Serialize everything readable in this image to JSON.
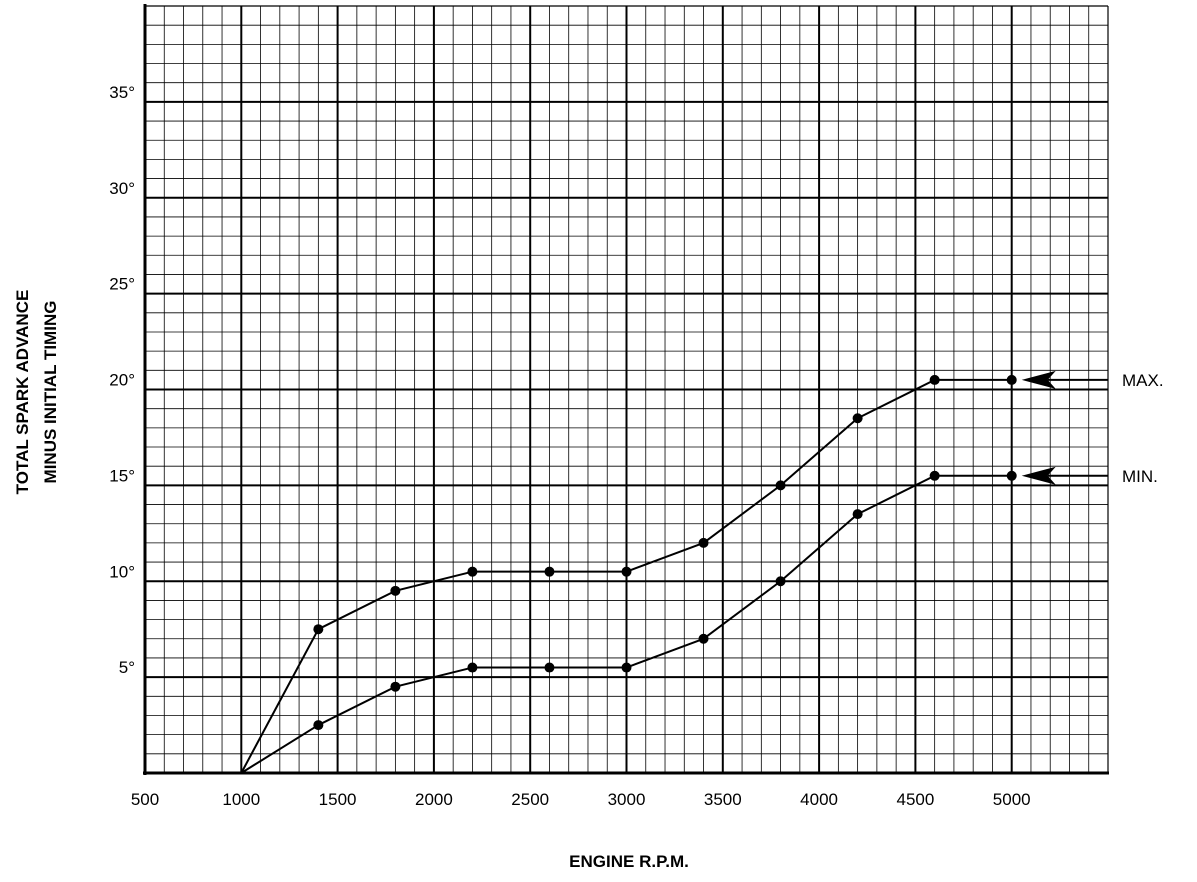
{
  "chart_data": {
    "type": "line",
    "title": "",
    "xlabel": "ENGINE R.P.M.",
    "ylabel_lines": [
      "TOTAL SPARK ADVANCE",
      "MINUS INITIAL TIMING"
    ],
    "xlim": [
      500,
      5500
    ],
    "ylim": [
      0,
      40
    ],
    "x_ticks": [
      500,
      1000,
      1500,
      2000,
      2500,
      3000,
      3500,
      4000,
      4500,
      5000
    ],
    "x_tick_labels": [
      "500",
      "1000",
      "1500",
      "2000",
      "2500",
      "3000",
      "3500",
      "4000",
      "4500",
      "5000"
    ],
    "y_ticks": [
      5,
      10,
      15,
      20,
      25,
      30,
      35
    ],
    "y_tick_labels": [
      "5°",
      "10°",
      "15°",
      "20°",
      "25°",
      "30°",
      "35°"
    ],
    "grid": true,
    "grid_minor_x": 100,
    "grid_minor_y": 1,
    "legend": "none",
    "series": [
      {
        "name": "MAX.",
        "x": [
          1000,
          1400,
          1800,
          2200,
          2600,
          3000,
          3400,
          3800,
          4200,
          4600,
          5000
        ],
        "y": [
          0,
          7.5,
          9.5,
          10.5,
          10.5,
          10.5,
          12,
          15,
          18.5,
          20.5,
          20.5
        ],
        "markers_from_index": 1
      },
      {
        "name": "MIN.",
        "x": [
          1000,
          1400,
          1800,
          2200,
          2600,
          3000,
          3400,
          3800,
          4200,
          4600,
          5000
        ],
        "y": [
          0,
          2.5,
          4.5,
          5.5,
          5.5,
          5.5,
          7,
          10,
          13.5,
          15.5,
          15.5
        ],
        "markers_from_index": 1
      }
    ],
    "colors": {
      "line": "#000000",
      "grid": "#000000",
      "background": "#ffffff"
    }
  }
}
